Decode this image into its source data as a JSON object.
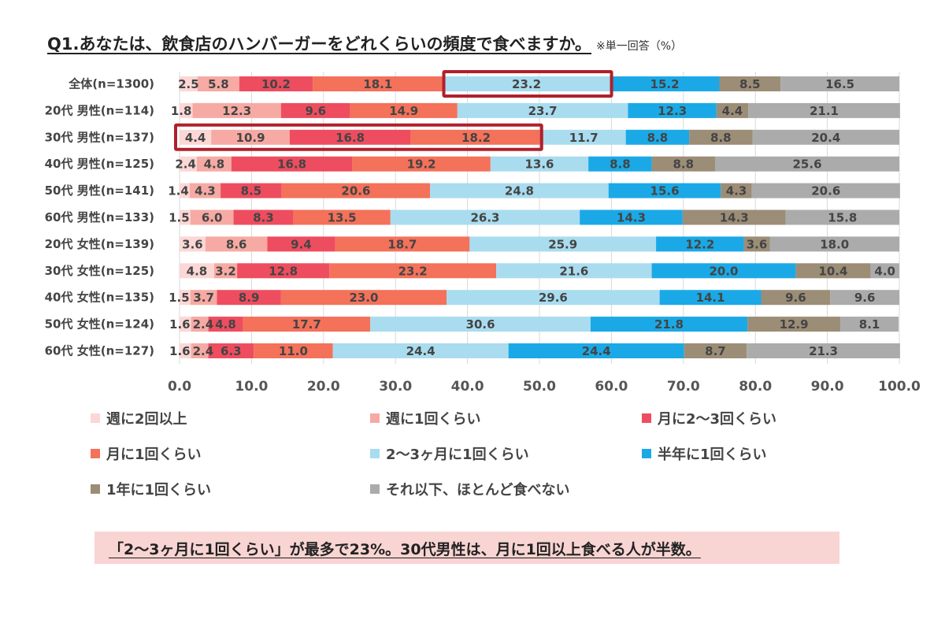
{
  "title": "Q1.あなたは、飲食店のハンバーガーをどれくらいの頻度で食べますか。",
  "note": "※単一回答（%）",
  "chart_data": {
    "type": "bar",
    "orientation": "horizontal",
    "stacked": true,
    "xlim": [
      0,
      100
    ],
    "xticks": [
      "0.0",
      "10.0",
      "20.0",
      "30.0",
      "40.0",
      "50.0",
      "60.0",
      "70.0",
      "80.0",
      "90.0",
      "100.0"
    ],
    "grid": true,
    "legend_position": "bottom",
    "categories": [
      "全体(n=1300)",
      "20代 男性(n=114)",
      "30代 男性(n=137)",
      "40代 男性(n=125)",
      "50代 男性(n=141)",
      "60代 男性(n=133)",
      "20代 女性(n=139)",
      "30代 女性(n=125)",
      "40代 女性(n=135)",
      "50代 女性(n=124)",
      "60代 女性(n=127)"
    ],
    "series": [
      {
        "name": "週に2回以上",
        "color": "#fbd7d5",
        "values": [
          2.5,
          1.8,
          4.4,
          2.4,
          1.4,
          1.5,
          3.6,
          4.8,
          1.5,
          1.6,
          1.6
        ]
      },
      {
        "name": "週に1回くらい",
        "color": "#f6aaa3",
        "values": [
          5.8,
          12.3,
          10.9,
          4.8,
          4.3,
          6.0,
          8.6,
          3.2,
          3.7,
          2.4,
          2.4
        ]
      },
      {
        "name": "月に2〜3回くらい",
        "color": "#ee4d5f",
        "values": [
          10.2,
          9.6,
          16.8,
          16.8,
          8.5,
          8.3,
          9.4,
          12.8,
          8.9,
          4.8,
          6.3
        ]
      },
      {
        "name": "月に1回くらい",
        "color": "#f4715a",
        "values": [
          18.1,
          14.9,
          18.2,
          19.2,
          20.6,
          13.5,
          18.7,
          23.2,
          23.0,
          17.7,
          11.0
        ]
      },
      {
        "name": "2〜3ヶ月に1回くらい",
        "color": "#a9dcef",
        "values": [
          23.2,
          23.7,
          11.7,
          13.6,
          24.8,
          26.3,
          25.9,
          21.6,
          29.6,
          30.6,
          24.4
        ]
      },
      {
        "name": "半年に1回くらい",
        "color": "#1aa9e6",
        "values": [
          15.2,
          12.3,
          8.8,
          8.8,
          15.6,
          14.3,
          12.2,
          20.0,
          14.1,
          21.8,
          24.4
        ]
      },
      {
        "name": "1年に1回くらい",
        "color": "#9c8d77",
        "values": [
          8.5,
          4.4,
          8.8,
          8.8,
          4.3,
          14.3,
          3.6,
          10.4,
          9.6,
          12.9,
          8.7
        ]
      },
      {
        "name": "それ以下、ほとんど食べない",
        "color": "#ababab",
        "values": [
          16.5,
          21.1,
          20.4,
          25.6,
          20.6,
          15.8,
          18.0,
          4.0,
          9.6,
          8.1,
          21.3
        ]
      }
    ]
  },
  "conclusion": "「2〜3ヶ月に1回くらい」が最多で23%。30代男性は、月に1回以上食べる人が半数。"
}
